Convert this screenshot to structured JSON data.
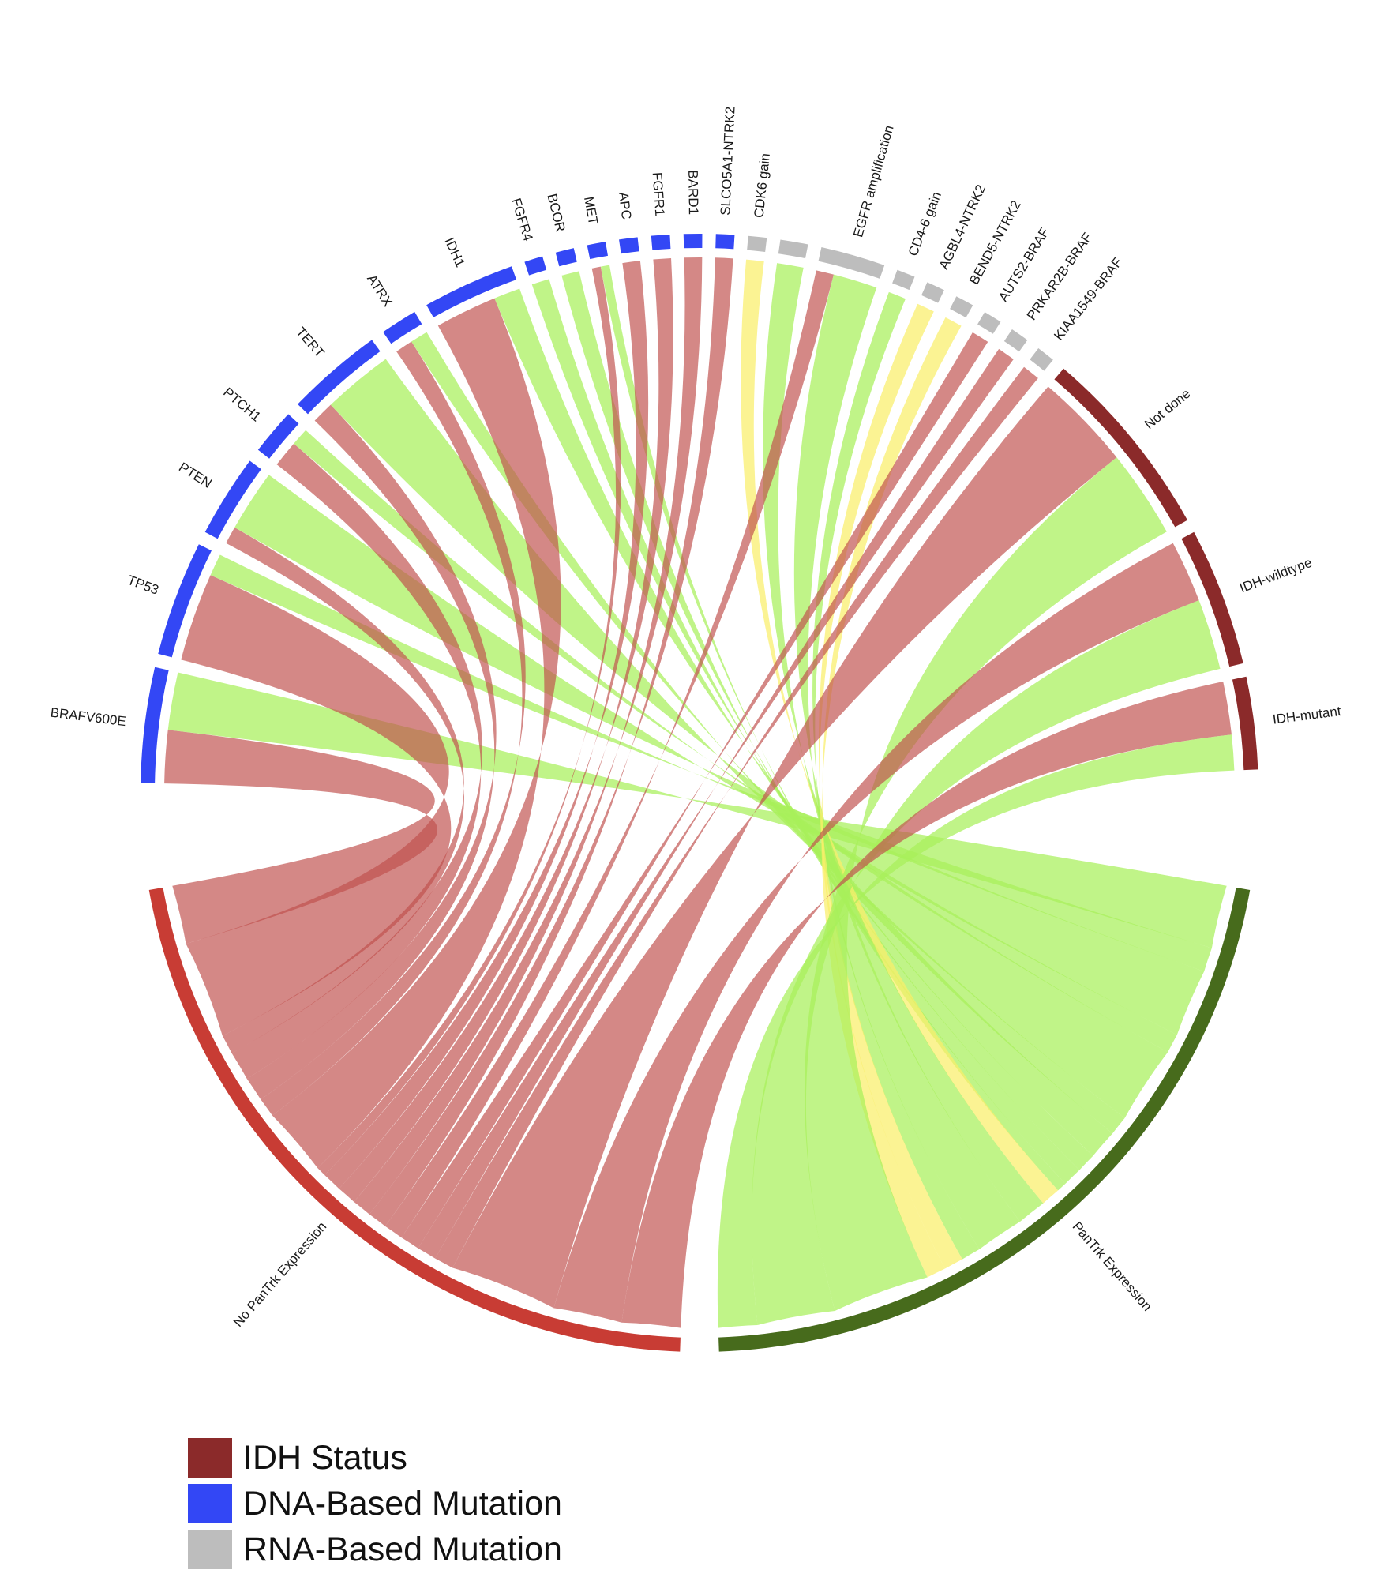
{
  "chart_data": {
    "type": "chord",
    "title": "",
    "segments": [
      {
        "name": "BRAFV600E",
        "group": "DNA-Based Mutation",
        "pos": 13,
        "neg": 12
      },
      {
        "name": "TP53",
        "group": "DNA-Based Mutation",
        "pos": 5,
        "neg": 20
      },
      {
        "name": "PTEN",
        "group": "DNA-Based Mutation",
        "pos": 14,
        "neg": 4
      },
      {
        "name": "PTCH1",
        "group": "DNA-Based Mutation",
        "pos": 4,
        "neg": 6
      },
      {
        "name": "TERT",
        "group": "DNA-Based Mutation",
        "pos": 16,
        "neg": 5
      },
      {
        "name": "ATRX",
        "group": "DNA-Based Mutation",
        "pos": 4,
        "neg": 4
      },
      {
        "name": "IDH1",
        "group": "DNA-Based Mutation",
        "pos": 6,
        "neg": 14
      },
      {
        "name": "FGFR4",
        "group": "DNA-Based Mutation",
        "pos": 4,
        "neg": 0
      },
      {
        "name": "BCOR",
        "group": "DNA-Based Mutation",
        "pos": 4,
        "neg": 0
      },
      {
        "name": "MET",
        "group": "DNA-Based Mutation",
        "pos": 2,
        "neg": 2
      },
      {
        "name": "APC",
        "group": "DNA-Based Mutation",
        "pos": 0,
        "neg": 4
      },
      {
        "name": "FGFR1",
        "group": "DNA-Based Mutation",
        "pos": 0,
        "neg": 4
      },
      {
        "name": "BARD1",
        "group": "DNA-Based Mutation",
        "pos": 0,
        "neg": 4
      },
      {
        "name": "SLCO5A1-NTRK2",
        "group": "DNA-Based Mutation",
        "pos": 0,
        "neg": 4
      },
      {
        "name": "CDK6 gain",
        "group": "RNA-Based Mutation",
        "pos": 4,
        "neg": 0,
        "yellow": true
      },
      {
        "name": "",
        "group": "RNA-Based Mutation",
        "pos": 6,
        "neg": 0
      },
      {
        "name": "EGFR amplification",
        "group": "RNA-Based Mutation",
        "pos": 10,
        "neg": 4
      },
      {
        "name": "CD4-6 gain",
        "group": "RNA-Based Mutation",
        "pos": 4,
        "neg": 0
      },
      {
        "name": "AGBL4-NTRK2",
        "group": "RNA-Based Mutation",
        "pos": 4,
        "neg": 0,
        "yellow": true
      },
      {
        "name": "BEND5-NTRK2",
        "group": "RNA-Based Mutation",
        "pos": 4,
        "neg": 0,
        "yellow": true
      },
      {
        "name": "AUTS2-BRAF",
        "group": "RNA-Based Mutation",
        "pos": 0,
        "neg": 4
      },
      {
        "name": "PRKAR2B-BRAF",
        "group": "RNA-Based Mutation",
        "pos": 0,
        "neg": 4
      },
      {
        "name": "KIAA1549-BRAF",
        "group": "RNA-Based Mutation",
        "pos": 0,
        "neg": 4
      },
      {
        "name": "Not done",
        "group": "IDH Status",
        "pos": 20,
        "neg": 22
      },
      {
        "name": "IDH-wildtype",
        "group": "IDH Status",
        "pos": 16,
        "neg": 14
      },
      {
        "name": "IDH-mutant",
        "group": "IDH Status",
        "pos": 8,
        "neg": 12
      }
    ],
    "targets": [
      "No PanTrk Expression",
      "PanTrk Expression"
    ],
    "legend": [
      {
        "label": "IDH Status",
        "color": "#8b2a2a"
      },
      {
        "label": "DNA-Based Mutation",
        "color": "#3347f5"
      },
      {
        "label": "RNA-Based Mutation",
        "color": "#bdbdbd"
      }
    ],
    "colors": {
      "dna": "#3347f5",
      "rna": "#bdbdbd",
      "idh": "#8b2a2a",
      "neg_target": "#c83c34",
      "pos_target": "#476b1c",
      "neg_chord": "#c0504d",
      "pos_chord": "#a8f05a",
      "yellow_chord": "#f9ee6a"
    }
  }
}
